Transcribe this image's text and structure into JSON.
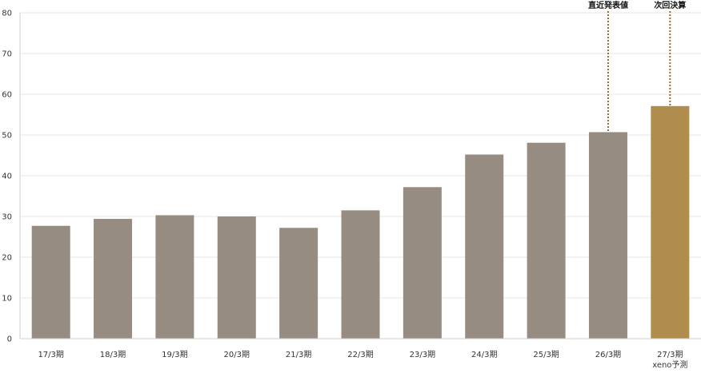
{
  "chart_data": {
    "type": "bar",
    "categories": [
      "17/3期",
      "18/3期",
      "19/3期",
      "20/3期",
      "21/3期",
      "22/3期",
      "23/3期",
      "24/3期",
      "25/3期",
      "26/3期",
      "27/3期"
    ],
    "category_sublabels": [
      "",
      "",
      "",
      "",
      "",
      "",
      "",
      "",
      "",
      "",
      "xeno予測"
    ],
    "values": [
      27.7,
      29.4,
      30.3,
      30.0,
      27.2,
      31.5,
      37.2,
      45.2,
      48.1,
      50.7,
      57.1
    ],
    "ylim": [
      0,
      80
    ],
    "yticks": [
      0,
      10,
      20,
      30,
      40,
      50,
      60,
      70,
      80
    ],
    "grid": true,
    "colors": {
      "bar": "#968c81",
      "forecast_bar": "#b08d4c",
      "annotation_line": "#a0692a",
      "grid": "#e6e6e6",
      "axis": "#cfcfcf"
    },
    "bar_colors": [
      "bar",
      "bar",
      "bar",
      "bar",
      "bar",
      "bar",
      "bar",
      "bar",
      "bar",
      "bar",
      "forecast_bar"
    ],
    "annotations": [
      {
        "label": "直近発表値",
        "category_index": 9
      },
      {
        "label": "次回決算",
        "category_index": 10
      }
    ]
  }
}
